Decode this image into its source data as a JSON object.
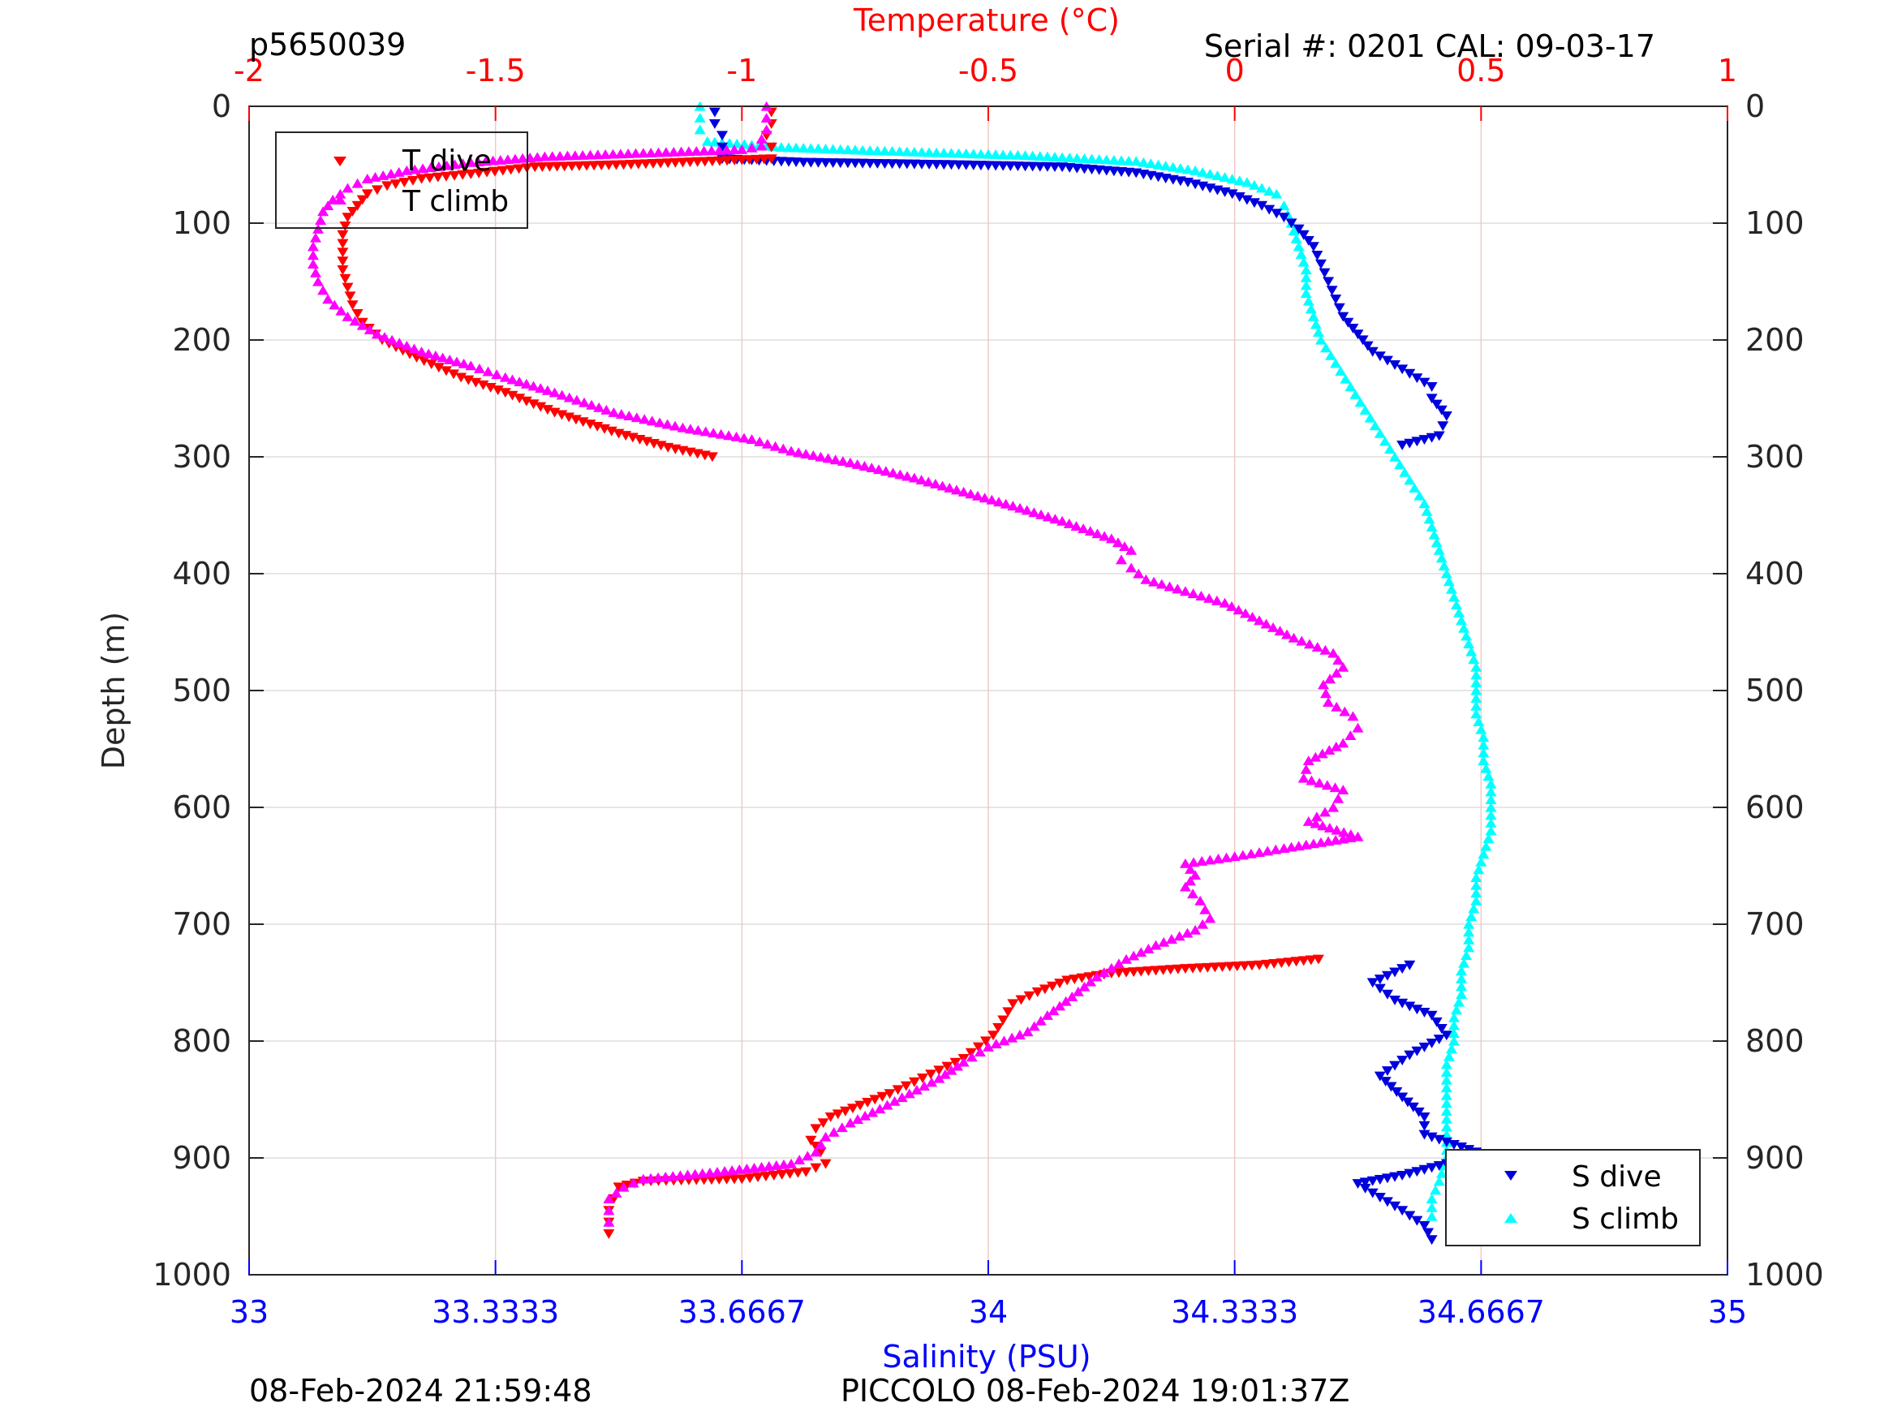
{
  "header": {
    "profile_id": "p5650039",
    "serial": "Serial #: 0201  CAL: 09-03-17"
  },
  "footer": {
    "left": "08-Feb-2024 21:59:48",
    "right": "PICCOLO 08-Feb-2024 19:01:37Z"
  },
  "colors": {
    "t_dive": "#ff0000",
    "t_climb": "#ff00ff",
    "s_dive": "#0000dd",
    "s_climb": "#00ffff",
    "temp_axis": "#ff0000",
    "sal_axis": "#0000ff",
    "grid_temp": "#f2c8c8",
    "grid_depth": "#dddddd"
  },
  "chart_data": {
    "type": "scatter",
    "ylabel": "Depth (m)",
    "ylim": [
      0,
      1000
    ],
    "y_reversed": true,
    "y_ticks": [
      0,
      100,
      200,
      300,
      400,
      500,
      600,
      700,
      800,
      900,
      1000
    ],
    "y_tick_labels": [
      "0",
      "100",
      "200",
      "300",
      "400",
      "500",
      "600",
      "700",
      "800",
      "900",
      "1000"
    ],
    "temperature_axis": {
      "label": "Temperature (°C)",
      "position": "top",
      "range": [
        -2,
        1
      ],
      "ticks": [
        -2,
        -1.5,
        -1,
        -0.5,
        0,
        0.5,
        1
      ],
      "tick_labels": [
        "-2",
        "-1.5",
        "-1",
        "-0.5",
        "0",
        "0.5",
        "1"
      ]
    },
    "salinity_axis": {
      "label": "Salinity (PSU)",
      "position": "bottom",
      "range": [
        33,
        35
      ],
      "ticks": [
        33,
        33.3333,
        33.6667,
        34,
        34.3333,
        34.6667,
        35
      ],
      "tick_labels": [
        "33",
        "33.3333",
        "33.6667",
        "34",
        "34.3333",
        "34.6667",
        "35"
      ]
    },
    "legends": [
      {
        "placement": "top-left",
        "entries": [
          "T dive",
          "T climb"
        ]
      },
      {
        "placement": "bottom-right",
        "entries": [
          "S dive",
          "S climb"
        ]
      }
    ],
    "series": [
      {
        "name": "T dive",
        "axis": "temperature",
        "marker": "triangle-down",
        "points": [
          [
            -0.94,
            5
          ],
          [
            -0.94,
            15
          ],
          [
            -0.95,
            25
          ],
          [
            -0.94,
            35
          ],
          [
            -0.94,
            45
          ],
          [
            -1.24,
            50
          ],
          [
            -1.42,
            52
          ],
          [
            -1.55,
            58
          ],
          [
            -1.65,
            62
          ],
          [
            -1.72,
            68
          ],
          [
            -1.76,
            75
          ],
          [
            -1.78,
            85
          ],
          [
            -1.8,
            95
          ],
          [
            -1.81,
            110
          ],
          [
            -1.81,
            125
          ],
          [
            -1.81,
            140
          ],
          [
            -1.8,
            155
          ],
          [
            -1.79,
            170
          ],
          [
            -1.77,
            185
          ],
          [
            -1.73,
            200
          ],
          [
            -1.66,
            215
          ],
          [
            -1.57,
            232
          ],
          [
            -1.48,
            245
          ],
          [
            -1.38,
            262
          ],
          [
            -1.25,
            280
          ],
          [
            -1.15,
            292
          ],
          [
            -1.06,
            300
          ],
          [
            0.17,
            730
          ],
          [
            0.05,
            735
          ],
          [
            -0.1,
            738
          ],
          [
            -0.25,
            742
          ],
          [
            -0.34,
            748
          ],
          [
            -0.4,
            758
          ],
          [
            -0.45,
            768
          ],
          [
            -0.47,
            782
          ],
          [
            -0.49,
            795
          ],
          [
            -0.52,
            805
          ],
          [
            -0.55,
            815
          ],
          [
            -0.6,
            825
          ],
          [
            -0.65,
            835
          ],
          [
            -0.7,
            845
          ],
          [
            -0.76,
            855
          ],
          [
            -0.82,
            865
          ],
          [
            -0.85,
            875
          ],
          [
            -0.86,
            885
          ],
          [
            -0.84,
            895
          ],
          [
            -0.83,
            905
          ],
          [
            -0.87,
            912
          ],
          [
            -1.0,
            918
          ],
          [
            -1.2,
            920
          ],
          [
            -1.25,
            925
          ],
          [
            -1.26,
            935
          ],
          [
            -1.27,
            945
          ],
          [
            -1.27,
            955
          ],
          [
            -1.27,
            965
          ]
        ]
      },
      {
        "name": "T climb",
        "axis": "temperature",
        "marker": "triangle-up",
        "points": [
          [
            -0.95,
            0
          ],
          [
            -0.95,
            10
          ],
          [
            -0.95,
            20
          ],
          [
            -0.96,
            28
          ],
          [
            -0.96,
            34
          ],
          [
            -1.0,
            37
          ],
          [
            -1.2,
            40
          ],
          [
            -1.4,
            43
          ],
          [
            -1.55,
            48
          ],
          [
            -1.68,
            55
          ],
          [
            -1.76,
            62
          ],
          [
            -1.8,
            70
          ],
          [
            -1.83,
            80
          ],
          [
            -1.85,
            90
          ],
          [
            -1.86,
            105
          ],
          [
            -1.87,
            120
          ],
          [
            -1.87,
            135
          ],
          [
            -1.86,
            150
          ],
          [
            -1.84,
            165
          ],
          [
            -1.8,
            180
          ],
          [
            -1.74,
            195
          ],
          [
            -1.65,
            210
          ],
          [
            -1.55,
            222
          ],
          [
            -1.48,
            232
          ],
          [
            -1.38,
            245
          ],
          [
            -1.26,
            262
          ],
          [
            -1.12,
            275
          ],
          [
            -0.98,
            285
          ],
          [
            -0.9,
            295
          ],
          [
            -0.78,
            305
          ],
          [
            -0.65,
            318
          ],
          [
            -0.55,
            330
          ],
          [
            -0.45,
            342
          ],
          [
            -0.35,
            355
          ],
          [
            -0.25,
            370
          ],
          [
            -0.21,
            380
          ],
          [
            -0.23,
            388
          ],
          [
            -0.21,
            395
          ],
          [
            -0.18,
            405
          ],
          [
            -0.1,
            415
          ],
          [
            -0.02,
            425
          ],
          [
            0.05,
            440
          ],
          [
            0.12,
            455
          ],
          [
            0.2,
            468
          ],
          [
            0.22,
            480
          ],
          [
            0.18,
            495
          ],
          [
            0.19,
            510
          ],
          [
            0.24,
            522
          ],
          [
            0.25,
            532
          ],
          [
            0.22,
            545
          ],
          [
            0.15,
            560
          ],
          [
            0.14,
            575
          ],
          [
            0.22,
            585
          ],
          [
            0.2,
            600
          ],
          [
            0.15,
            612
          ],
          [
            0.25,
            625
          ],
          [
            0.1,
            635
          ],
          [
            0.0,
            642
          ],
          [
            -0.1,
            648
          ],
          [
            -0.08,
            658
          ],
          [
            -0.1,
            668
          ],
          [
            -0.07,
            680
          ],
          [
            -0.05,
            695
          ],
          [
            -0.08,
            705
          ],
          [
            -0.16,
            718
          ],
          [
            -0.22,
            730
          ],
          [
            -0.28,
            745
          ],
          [
            -0.33,
            762
          ],
          [
            -0.38,
            778
          ],
          [
            -0.42,
            792
          ],
          [
            -0.5,
            805
          ],
          [
            -0.55,
            818
          ],
          [
            -0.6,
            832
          ],
          [
            -0.66,
            845
          ],
          [
            -0.72,
            858
          ],
          [
            -0.78,
            870
          ],
          [
            -0.83,
            882
          ],
          [
            -0.85,
            895
          ],
          [
            -0.9,
            905
          ],
          [
            -1.05,
            912
          ],
          [
            -1.2,
            918
          ],
          [
            -1.24,
            925
          ],
          [
            -1.27,
            935
          ],
          [
            -1.27,
            945
          ],
          [
            -1.27,
            955
          ]
        ]
      },
      {
        "name": "S dive",
        "axis": "salinity",
        "marker": "triangle-down",
        "points": [
          [
            33.63,
            5
          ],
          [
            33.63,
            15
          ],
          [
            33.64,
            25
          ],
          [
            33.64,
            35
          ],
          [
            33.64,
            45
          ],
          [
            33.75,
            48
          ],
          [
            33.95,
            50
          ],
          [
            34.1,
            52
          ],
          [
            34.2,
            57
          ],
          [
            34.27,
            65
          ],
          [
            34.33,
            75
          ],
          [
            34.37,
            85
          ],
          [
            34.4,
            95
          ],
          [
            34.42,
            105
          ],
          [
            34.44,
            120
          ],
          [
            34.45,
            135
          ],
          [
            34.46,
            150
          ],
          [
            34.47,
            165
          ],
          [
            34.48,
            180
          ],
          [
            34.5,
            195
          ],
          [
            34.52,
            210
          ],
          [
            34.56,
            225
          ],
          [
            34.6,
            240
          ],
          [
            34.6,
            250
          ],
          [
            34.62,
            265
          ],
          [
            34.61,
            282
          ],
          [
            34.56,
            290
          ],
          [
            34.57,
            735
          ],
          [
            34.52,
            750
          ],
          [
            34.55,
            765
          ],
          [
            34.6,
            778
          ],
          [
            34.62,
            795
          ],
          [
            34.57,
            812
          ],
          [
            34.53,
            830
          ],
          [
            34.56,
            848
          ],
          [
            34.59,
            865
          ],
          [
            34.59,
            880
          ],
          [
            34.66,
            895
          ],
          [
            34.62,
            905
          ],
          [
            34.56,
            915
          ],
          [
            34.5,
            922
          ],
          [
            34.52,
            930
          ],
          [
            34.56,
            945
          ],
          [
            34.59,
            958
          ],
          [
            34.6,
            970
          ]
        ]
      },
      {
        "name": "S climb",
        "axis": "salinity",
        "marker": "triangle-up",
        "points": [
          [
            33.61,
            0
          ],
          [
            33.61,
            10
          ],
          [
            33.61,
            20
          ],
          [
            33.62,
            30
          ],
          [
            33.72,
            35
          ],
          [
            33.85,
            38
          ],
          [
            34.05,
            42
          ],
          [
            34.2,
            47
          ],
          [
            34.28,
            55
          ],
          [
            34.35,
            65
          ],
          [
            34.39,
            75
          ],
          [
            34.4,
            85
          ],
          [
            34.41,
            100
          ],
          [
            34.42,
            120
          ],
          [
            34.43,
            140
          ],
          [
            34.43,
            160
          ],
          [
            34.44,
            180
          ],
          [
            34.45,
            200
          ],
          [
            34.47,
            220
          ],
          [
            34.49,
            240
          ],
          [
            34.51,
            260
          ],
          [
            34.53,
            280
          ],
          [
            34.55,
            300
          ],
          [
            34.57,
            320
          ],
          [
            34.59,
            340
          ],
          [
            34.6,
            360
          ],
          [
            34.61,
            380
          ],
          [
            34.62,
            400
          ],
          [
            34.63,
            420
          ],
          [
            34.64,
            440
          ],
          [
            34.65,
            460
          ],
          [
            34.66,
            480
          ],
          [
            34.66,
            500
          ],
          [
            34.66,
            520
          ],
          [
            34.67,
            540
          ],
          [
            34.67,
            560
          ],
          [
            34.68,
            580
          ],
          [
            34.68,
            600
          ],
          [
            34.68,
            620
          ],
          [
            34.67,
            640
          ],
          [
            34.66,
            660
          ],
          [
            34.66,
            680
          ],
          [
            34.65,
            700
          ],
          [
            34.65,
            720
          ],
          [
            34.64,
            740
          ],
          [
            34.64,
            760
          ],
          [
            34.63,
            780
          ],
          [
            34.63,
            800
          ],
          [
            34.62,
            820
          ],
          [
            34.62,
            840
          ],
          [
            34.62,
            860
          ],
          [
            34.62,
            880
          ],
          [
            34.62,
            900
          ],
          [
            34.61,
            920
          ],
          [
            34.6,
            935
          ],
          [
            34.6,
            950
          ]
        ]
      }
    ]
  }
}
